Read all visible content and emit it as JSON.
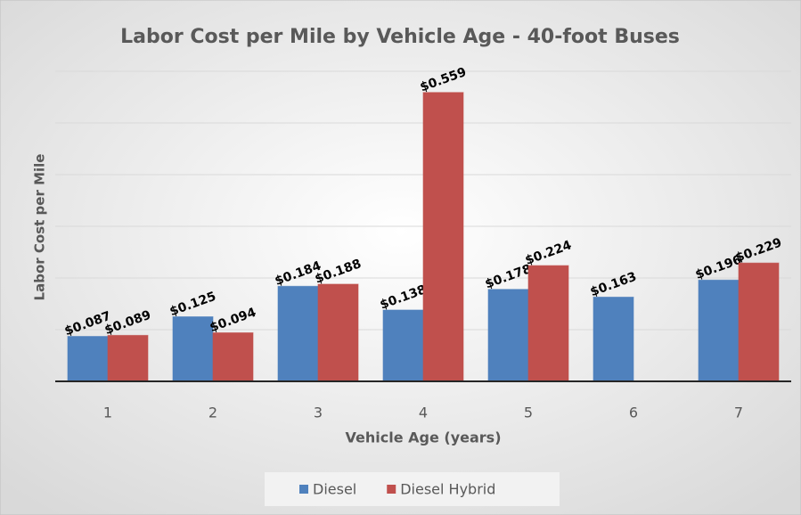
{
  "chart_data": {
    "type": "bar",
    "title": "Labor Cost per Mile by Vehicle Age - 40-foot Buses",
    "x_label": "Vehicle Age (years)",
    "y_label": "Labor Cost per Mile",
    "categories": [
      "1",
      "2",
      "3",
      "4",
      "5",
      "6",
      "7"
    ],
    "series": [
      {
        "name": "Diesel",
        "color": "#4f81bd",
        "values": [
          0.087,
          0.125,
          0.184,
          0.138,
          0.178,
          0.163,
          0.196
        ],
        "value_labels": [
          "$0.087",
          "$0.125",
          "$0.184",
          "$0.138",
          "$0.178",
          "$0.163",
          "$0.196"
        ]
      },
      {
        "name": "Diesel Hybrid",
        "color": "#c0504d",
        "values": [
          0.089,
          0.094,
          0.188,
          0.559,
          0.224,
          null,
          0.229
        ],
        "value_labels": [
          "$0.089",
          "$0.094",
          "$0.188",
          "$0.559",
          "$0.224",
          null,
          "$0.229"
        ]
      }
    ],
    "ylim": [
      0,
      0.6
    ],
    "yticks": [
      0.1,
      0.2,
      0.3,
      0.4,
      0.5,
      0.6
    ],
    "grid": true,
    "legend": "bottom"
  }
}
